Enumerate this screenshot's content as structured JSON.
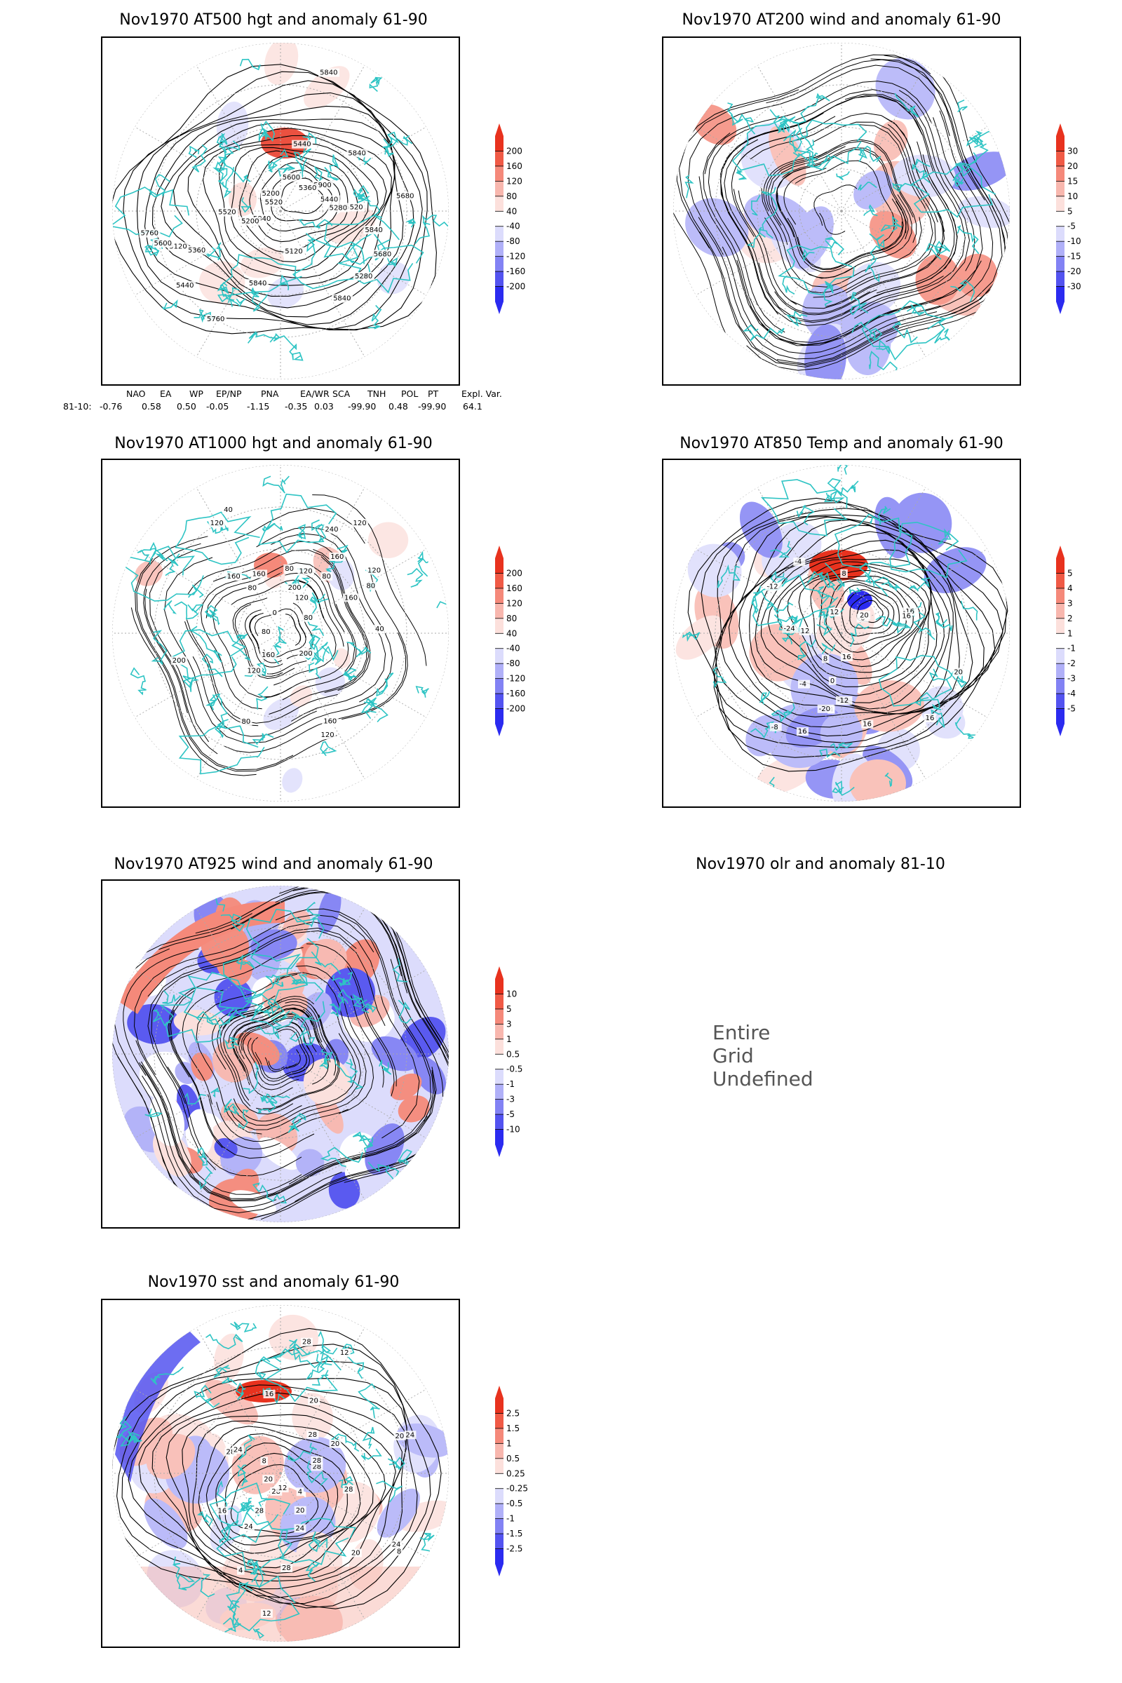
{
  "panels": [
    {
      "id": "p1",
      "title": "Nov1970 AT500 hgt and anomaly 61-90",
      "colorbar": {
        "type": "hgt",
        "labels": [
          "200",
          "160",
          "120",
          "80",
          "40",
          "-40",
          "-80",
          "-120",
          "-160",
          "-200"
        ]
      },
      "contour_labels": [
        "5840",
        "5840",
        "5760",
        "5680",
        "5600",
        "5520",
        "5440",
        "5900",
        "5520",
        "5440",
        "5360",
        "5280",
        "5200",
        "5120",
        "5120",
        "5200",
        "5280",
        "5360",
        "5440",
        "5520",
        "5600",
        "5680",
        "5760",
        "5840",
        "5840",
        "5840",
        "5840"
      ]
    },
    {
      "id": "p2",
      "title": "Nov1970 AT200 wind and anomaly 61-90",
      "colorbar": {
        "type": "wind",
        "labels": [
          "30",
          "20",
          "15",
          "10",
          "5",
          "-5",
          "-10",
          "-15",
          "-20",
          "-30"
        ]
      },
      "contour_labels": []
    },
    {
      "id": "p3",
      "title": "Nov1970 AT1000 hgt and anomaly 61-90",
      "colorbar": {
        "type": "hgt",
        "labels": [
          "200",
          "160",
          "120",
          "80",
          "40",
          "-40",
          "-80",
          "-120",
          "-160",
          "-200"
        ]
      },
      "contour_labels": [
        "80",
        "120",
        "160",
        "160",
        "200",
        "120",
        "80",
        "160",
        "120",
        "40",
        "240",
        "200",
        "120",
        "80",
        "80",
        "160",
        "160",
        "120",
        "80",
        "120",
        "80",
        "120",
        "40",
        "0",
        "80",
        "160",
        "200"
      ]
    },
    {
      "id": "p4",
      "title": "Nov1970 AT850 Temp and anomaly 61-90",
      "colorbar": {
        "type": "temp",
        "labels": [
          "5",
          "4",
          "3",
          "2",
          "1",
          "-1",
          "-2",
          "-3",
          "-4",
          "-5"
        ]
      },
      "contour_labels": [
        "16",
        "12",
        "8",
        "4",
        "0",
        "-4",
        "-8",
        "-12",
        "-16",
        "-20",
        "-24",
        "16",
        "16",
        "16",
        "12",
        "16",
        "20",
        "20",
        "-8",
        "-12",
        "-4",
        "8"
      ]
    },
    {
      "id": "p5",
      "title": "Nov1970 AT925 wind and anomaly 61-90",
      "colorbar": {
        "type": "wind925",
        "labels": [
          "10",
          "5",
          "3",
          "1",
          "0.5",
          "-0.5",
          "-1",
          "-3",
          "-5",
          "-10"
        ]
      },
      "contour_labels": []
    },
    {
      "id": "p6",
      "title": "Nov1970 olr and anomaly 81-10",
      "message": "Entire Grid Undefined"
    },
    {
      "id": "p7",
      "title": "Nov1970 sst and anomaly 61-90",
      "colorbar": {
        "type": "sst",
        "labels": [
          "2.5",
          "1.5",
          "1",
          "0.5",
          "0.25",
          "-0.25",
          "-0.5",
          "-1",
          "-1.5",
          "-2.5"
        ]
      },
      "contour_labels": [
        "28",
        "28",
        "24",
        "24",
        "20",
        "16",
        "12",
        "12",
        "16",
        "20",
        "8",
        "4",
        "4",
        "28",
        "24",
        "28",
        "28",
        "28",
        "20",
        "24",
        "28",
        "20",
        "8",
        "12",
        "20",
        "28",
        "28",
        "20",
        "24"
      ]
    }
  ],
  "teleconnections": {
    "headers": [
      "NAO",
      "EA",
      "WP",
      "EP/NP",
      "PNA",
      "EA/WR",
      "SCA",
      "TNH",
      "POL",
      "PT",
      "Expl. Var."
    ],
    "row_label": "81-10:",
    "values": [
      "-0.76",
      "0.58",
      "0.50",
      "-0.05",
      "-1.15",
      "-0.35",
      "0.03",
      "-99.90",
      "0.48",
      "-99.90",
      "64.1"
    ]
  },
  "colors": {
    "coast": "#2ec4c4",
    "red": "#e8321e",
    "blue": "#2b2bf0",
    "contour": "#000000",
    "grid": "#999999"
  }
}
